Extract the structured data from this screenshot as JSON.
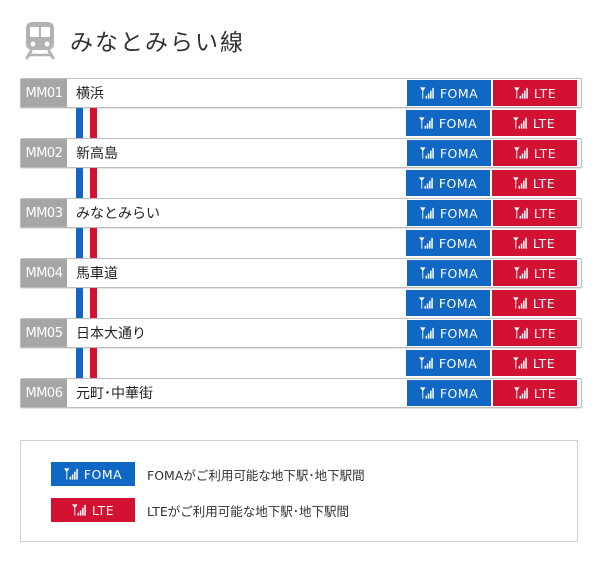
{
  "header": {
    "title": "みなとみらい線",
    "icon": "train-icon"
  },
  "badges": {
    "foma": "FOMA",
    "lte": "LTE"
  },
  "colors": {
    "foma": "#1068c4",
    "lte": "#d31233",
    "code_bg": "#a6a6a6"
  },
  "stations": [
    {
      "code": "MM01",
      "name": "横浜"
    },
    {
      "code": "MM02",
      "name": "新高島"
    },
    {
      "code": "MM03",
      "name": "みなとみらい"
    },
    {
      "code": "MM04",
      "name": "馬車道"
    },
    {
      "code": "MM05",
      "name": "日本大通り"
    },
    {
      "code": "MM06",
      "name": "元町･中華街"
    }
  ],
  "legend": {
    "foma_text": "FOMAがご利用可能な地下駅･地下駅間",
    "lte_text": "LTEがご利用可能な地下駅･地下駅間"
  }
}
